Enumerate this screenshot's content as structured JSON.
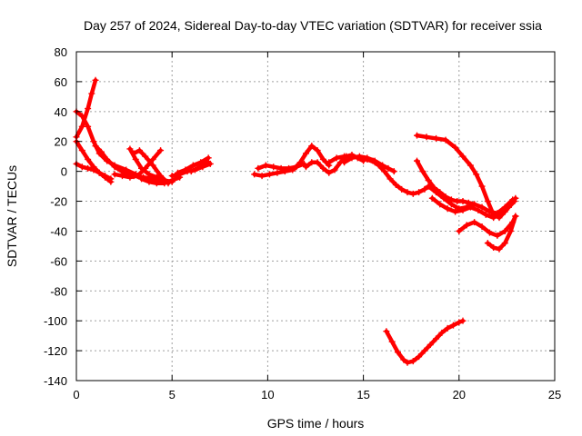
{
  "chart_data": {
    "type": "scatter",
    "title": "Day 257 of 2024, Sidereal Day-to-day VTEC variation (SDTVAR) for receiver ssia",
    "xlabel": "GPS time / hours",
    "ylabel": "SDTVAR / TECUs",
    "xlim": [
      0,
      25
    ],
    "ylim": [
      -140,
      80
    ],
    "xticks": [
      0,
      5,
      10,
      15,
      20,
      25
    ],
    "yticks": [
      -140,
      -120,
      -100,
      -80,
      -60,
      -40,
      -20,
      0,
      20,
      40,
      60,
      80
    ],
    "grid": true,
    "marker": "+",
    "color": "#ff0000",
    "series": [
      {
        "x": [
          0.0,
          0.3,
          0.6,
          0.9,
          1.2,
          1.5,
          1.8
        ],
        "y": [
          5,
          3,
          2,
          1,
          -1,
          -3,
          -5
        ]
      },
      {
        "x": [
          0.0,
          0.3,
          0.6,
          0.9,
          1.2,
          1.5,
          1.8
        ],
        "y": [
          20,
          14,
          8,
          3,
          -1,
          -4,
          -7
        ]
      },
      {
        "x": [
          0.0,
          0.3,
          0.6,
          0.8,
          1.0
        ],
        "y": [
          23,
          30,
          42,
          52,
          61
        ]
      },
      {
        "x": [
          0.0,
          0.3,
          0.6,
          0.9,
          1.2,
          1.6,
          2.0,
          2.6,
          3.1
        ],
        "y": [
          40,
          37,
          30,
          20,
          12,
          7,
          4,
          1,
          -2
        ]
      },
      {
        "x": [
          1.0,
          1.3,
          1.6,
          2.0,
          2.5,
          3.0,
          3.5,
          4.0,
          4.5
        ],
        "y": [
          17,
          13,
          8,
          3,
          -1,
          -3,
          -4,
          -5,
          -6
        ]
      },
      {
        "x": [
          2.0,
          2.4,
          2.8,
          3.2,
          3.6,
          4.0,
          4.4
        ],
        "y": [
          -2,
          -3,
          -4,
          -3,
          2,
          8,
          14
        ]
      },
      {
        "x": [
          2.8,
          3.1,
          3.4,
          3.8,
          4.2,
          4.6,
          5.0
        ],
        "y": [
          15,
          8,
          2,
          -2,
          -4,
          -6,
          -7
        ]
      },
      {
        "x": [
          3.0,
          3.3,
          3.6,
          4.0,
          4.4,
          4.8
        ],
        "y": [
          12,
          14,
          10,
          4,
          -3,
          -8
        ]
      },
      {
        "x": [
          3.4,
          3.8,
          4.2,
          4.6,
          5.0,
          5.4
        ],
        "y": [
          -5,
          -7,
          -8,
          -8,
          -6,
          -4
        ]
      },
      {
        "x": [
          5.0,
          5.4,
          5.8,
          6.2,
          6.6,
          7.0
        ],
        "y": [
          -3,
          -2,
          0,
          1,
          3,
          5
        ]
      },
      {
        "x": [
          5.3,
          5.7,
          6.1,
          6.5,
          6.9
        ],
        "y": [
          -1,
          1,
          4,
          6,
          9
        ]
      },
      {
        "x": [
          6.0,
          6.3,
          6.6,
          6.9
        ],
        "y": [
          0,
          2,
          4,
          6
        ]
      },
      {
        "x": [
          9.3,
          9.7,
          10.1,
          10.5,
          10.9,
          11.3
        ],
        "y": [
          -2,
          -3,
          -2,
          -1,
          0,
          1
        ]
      },
      {
        "x": [
          9.5,
          9.9,
          10.3,
          10.7,
          11.1,
          11.5,
          11.9
        ],
        "y": [
          2,
          4,
          3,
          2,
          2,
          3,
          5
        ]
      },
      {
        "x": [
          11.4,
          11.7,
          12.0,
          12.3,
          12.6,
          12.9,
          13.2
        ],
        "y": [
          2,
          6,
          12,
          17,
          14,
          8,
          4
        ]
      },
      {
        "x": [
          12.0,
          12.3,
          12.6,
          12.9,
          13.2,
          13.5,
          13.8,
          14.1,
          14.4,
          14.7,
          15.0
        ],
        "y": [
          3,
          6,
          6,
          2,
          -1,
          1,
          6,
          10,
          11,
          9,
          7
        ]
      },
      {
        "x": [
          13.2,
          13.6,
          14.0,
          14.4,
          14.8,
          15.2,
          15.6,
          16.0
        ],
        "y": [
          6,
          9,
          10,
          10,
          9,
          8,
          6,
          3
        ]
      },
      {
        "x": [
          14.0,
          14.4,
          14.8,
          15.2,
          15.6,
          16.0,
          16.3,
          16.6
        ],
        "y": [
          6,
          9,
          10,
          9,
          7,
          4,
          2,
          0
        ]
      },
      {
        "x": [
          15.5,
          15.8,
          16.1,
          16.4,
          16.7,
          17.0,
          17.3,
          17.6,
          17.9,
          18.2,
          18.4
        ],
        "y": [
          7,
          4,
          0,
          -5,
          -9,
          -12,
          -14,
          -15,
          -14,
          -12,
          -10
        ]
      },
      {
        "x": [
          17.8,
          18.1,
          18.4,
          18.7,
          19.0,
          19.3,
          19.6,
          19.9,
          20.2,
          20.5,
          20.8
        ],
        "y": [
          7,
          0,
          -6,
          -11,
          -14,
          -17,
          -19,
          -20,
          -20,
          -21,
          -22
        ]
      },
      {
        "x": [
          18.4,
          18.8,
          19.2,
          19.6,
          20.0,
          20.4,
          20.8,
          21.2,
          21.6,
          22.0,
          22.4,
          22.8
        ],
        "y": [
          -10,
          -14,
          -18,
          -22,
          -25,
          -24,
          -22,
          -24,
          -27,
          -28,
          -24,
          -19
        ]
      },
      {
        "x": [
          18.6,
          19.0,
          19.4,
          19.8,
          20.2,
          20.6,
          21.0,
          21.4,
          21.8,
          22.2,
          22.6,
          22.9
        ],
        "y": [
          -18,
          -22,
          -25,
          -27,
          -26,
          -24,
          -26,
          -29,
          -31,
          -28,
          -24,
          -20
        ]
      },
      {
        "x": [
          20.0,
          20.4,
          20.8,
          21.2,
          21.6,
          22.0,
          22.4,
          22.8,
          22.95
        ],
        "y": [
          -40,
          -36,
          -34,
          -37,
          -41,
          -43,
          -40,
          -34,
          -30
        ]
      },
      {
        "x": [
          21.5,
          21.8,
          22.1,
          22.4,
          22.7,
          22.95
        ],
        "y": [
          -48,
          -51,
          -52,
          -48,
          -40,
          -30
        ]
      },
      {
        "x": [
          17.8,
          18.3,
          18.8,
          19.3,
          19.8,
          20.2,
          20.6,
          20.9,
          21.2,
          21.5,
          21.8,
          22.1,
          22.4,
          22.7,
          22.95
        ],
        "y": [
          24,
          23,
          22,
          21,
          16,
          10,
          4,
          -2,
          -10,
          -20,
          -29,
          -31,
          -27,
          -22,
          -18
        ]
      },
      {
        "x": [
          16.2,
          16.5,
          16.8,
          17.1,
          17.3,
          17.6,
          17.9,
          18.2,
          18.5,
          18.8,
          19.1,
          19.4,
          19.7,
          20.0,
          20.2
        ],
        "y": [
          -107,
          -114,
          -121,
          -126,
          -128,
          -127,
          -124,
          -120,
          -116,
          -112,
          -108,
          -105,
          -103,
          -101,
          -100
        ]
      }
    ]
  }
}
